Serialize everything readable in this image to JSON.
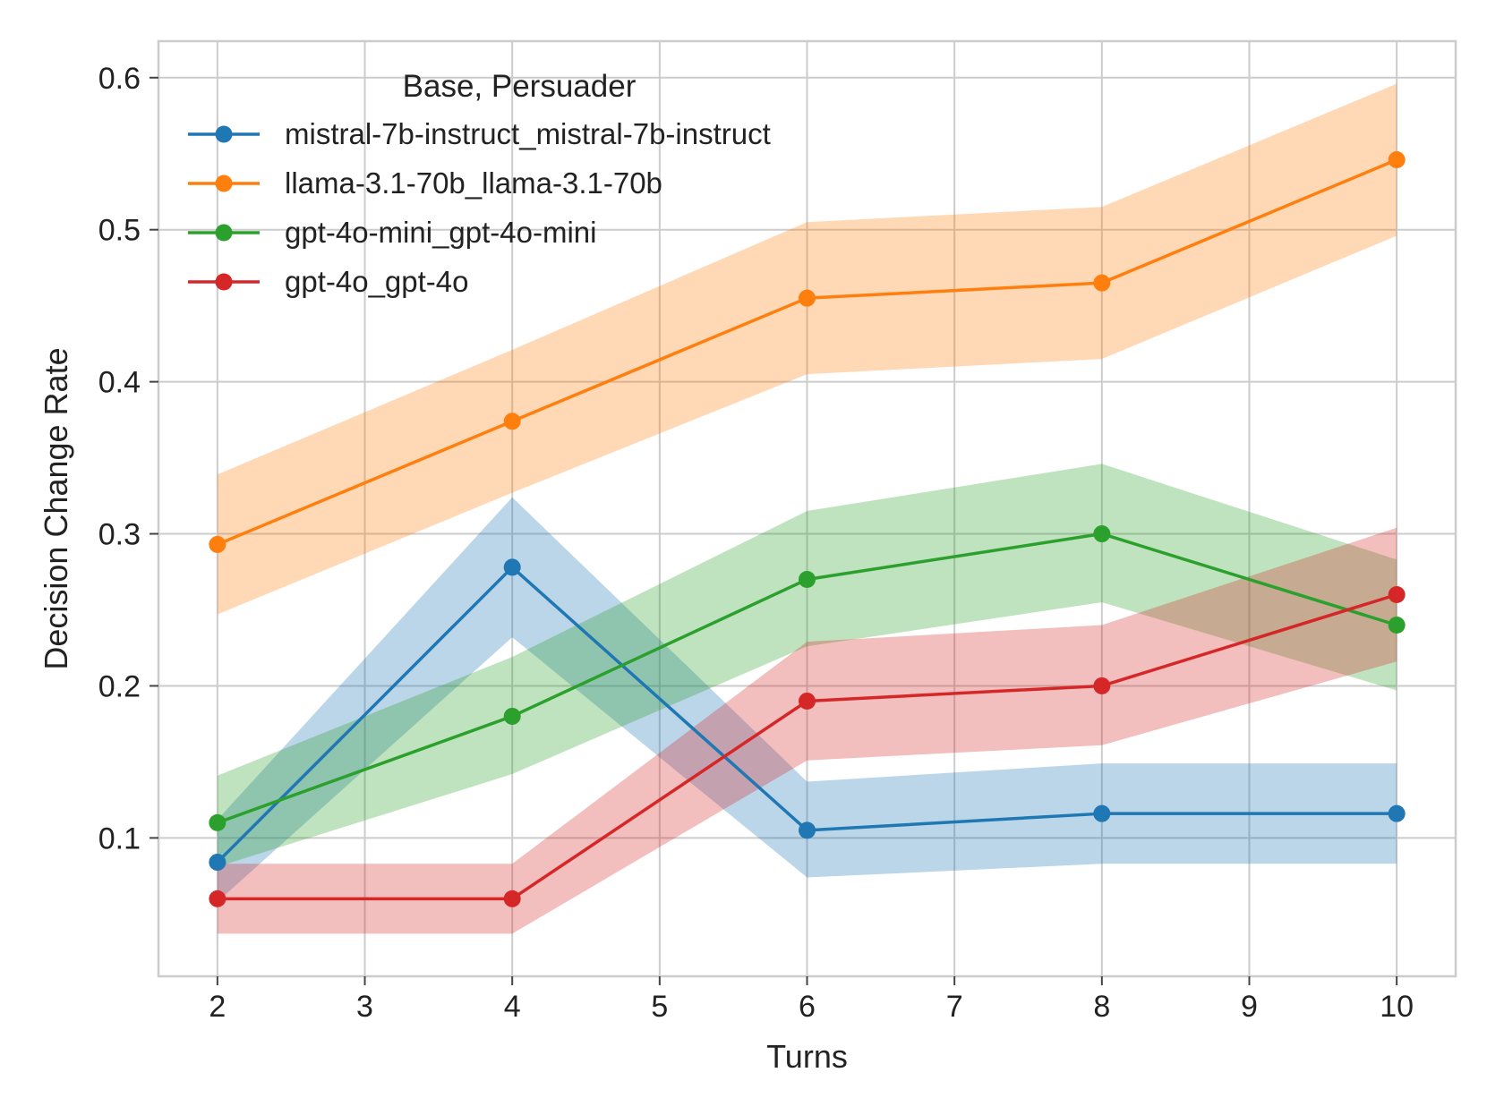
{
  "chart_data": {
    "type": "line",
    "title": "",
    "xlabel": "Turns",
    "ylabel": "Decision Change Rate",
    "x": [
      2,
      4,
      6,
      8,
      10
    ],
    "xlim": [
      1.6,
      10.4
    ],
    "ylim": [
      0.009,
      0.624
    ],
    "xticks": [
      2,
      3,
      4,
      5,
      6,
      7,
      8,
      9,
      10
    ],
    "xtick_labels": [
      "2",
      "3",
      "4",
      "5",
      "6",
      "7",
      "8",
      "9",
      "10"
    ],
    "yticks": [
      0.1,
      0.2,
      0.3,
      0.4,
      0.5,
      0.6
    ],
    "ytick_labels": [
      "0.1",
      "0.2",
      "0.3",
      "0.4",
      "0.5",
      "0.6"
    ],
    "grid": true,
    "legend": {
      "title": "Base, Persuader",
      "placement": "top-left"
    },
    "series": [
      {
        "name": "mistral-7b-instruct_mistral-7b-instruct",
        "color": "#1f77b4",
        "values": [
          0.084,
          0.278,
          0.105,
          0.116,
          0.116
        ],
        "lower": [
          0.058,
          0.232,
          0.074,
          0.083,
          0.083
        ],
        "upper": [
          0.112,
          0.324,
          0.137,
          0.149,
          0.149
        ]
      },
      {
        "name": "llama-3.1-70b_llama-3.1-70b",
        "color": "#ff7f0e",
        "values": [
          0.293,
          0.374,
          0.455,
          0.465,
          0.546
        ],
        "lower": [
          0.247,
          0.327,
          0.405,
          0.415,
          0.496
        ],
        "upper": [
          0.339,
          0.421,
          0.505,
          0.515,
          0.596
        ]
      },
      {
        "name": "gpt-4o-mini_gpt-4o-mini",
        "color": "#2ca02c",
        "values": [
          0.11,
          0.18,
          0.27,
          0.3,
          0.24
        ],
        "lower": [
          0.081,
          0.142,
          0.226,
          0.255,
          0.197
        ],
        "upper": [
          0.141,
          0.219,
          0.315,
          0.346,
          0.283
        ]
      },
      {
        "name": "gpt-4o_gpt-4o",
        "color": "#d62728",
        "values": [
          0.06,
          0.06,
          0.19,
          0.2,
          0.26
        ],
        "lower": [
          0.037,
          0.037,
          0.151,
          0.161,
          0.216
        ],
        "upper": [
          0.083,
          0.083,
          0.229,
          0.24,
          0.304
        ]
      }
    ]
  }
}
